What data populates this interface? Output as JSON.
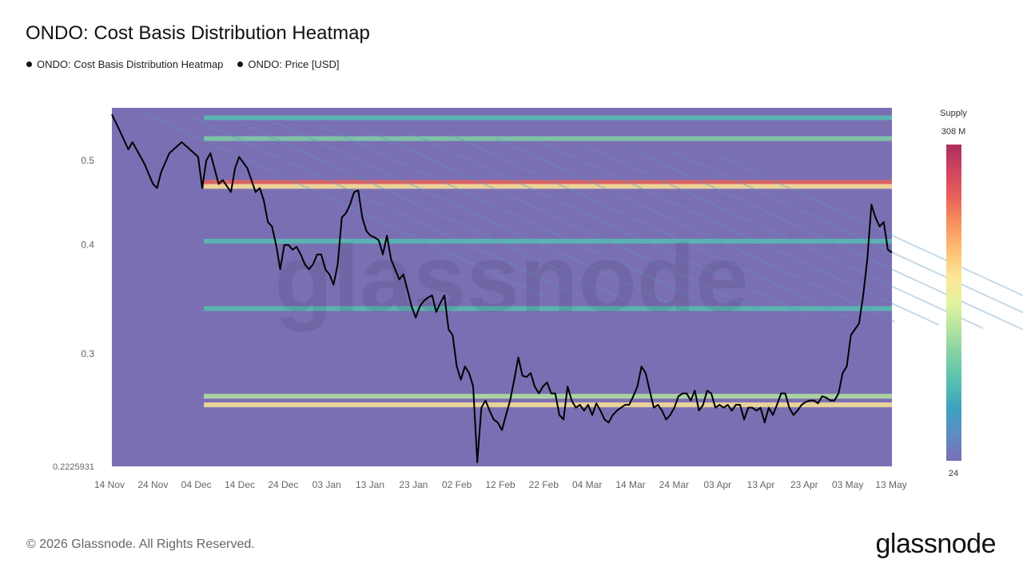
{
  "title": "ONDO: Cost Basis Distribution Heatmap",
  "legend": [
    {
      "label": "ONDO: Cost Basis Distribution Heatmap"
    },
    {
      "label": "ONDO: Price [USD]"
    }
  ],
  "footer": "© 2026 Glassnode. All Rights Reserved.",
  "logo": "glassnode",
  "watermark": "glassnode",
  "colors": {
    "background": "#7b6fb3",
    "price_line": "#000000",
    "colorbar": [
      "#7a6fb4",
      "#5e8cc3",
      "#3fa2c0",
      "#55c0b0",
      "#7fd0a5",
      "#b4e3a0",
      "#e4f39e",
      "#fde595",
      "#fdbf73",
      "#f8925e",
      "#e9615a",
      "#d04560",
      "#b02e5e"
    ]
  },
  "chart_data": {
    "type": "heatmap",
    "title": "",
    "y_axis": {
      "scale": "log",
      "ticks": [
        0.5,
        0.4,
        0.3
      ],
      "min_label": "0.2225931",
      "range": [
        0.2225931,
        0.575
      ]
    },
    "x_axis": {
      "ticks": [
        "14 Nov",
        "24 Nov",
        "04 Dec",
        "14 Dec",
        "24 Dec",
        "03 Jan",
        "13 Jan",
        "23 Jan",
        "02 Feb",
        "12 Feb",
        "22 Feb",
        "04 Mar",
        "14 Mar",
        "24 Mar",
        "03 Apr",
        "13 Apr",
        "23 Apr",
        "03 May",
        "13 May"
      ]
    },
    "colorbar": {
      "label": "Supply",
      "max_label": "308 M",
      "min_label": "24",
      "max": 308000000,
      "min": 24
    },
    "price_series": {
      "name": "ONDO: Price [USD]",
      "points": [
        [
          0,
          0.565
        ],
        [
          2,
          0.54
        ],
        [
          4,
          0.515
        ],
        [
          5,
          0.525
        ],
        [
          7,
          0.505
        ],
        [
          8,
          0.495
        ],
        [
          10,
          0.47
        ],
        [
          11,
          0.465
        ],
        [
          12,
          0.485
        ],
        [
          14,
          0.51
        ],
        [
          16,
          0.52
        ],
        [
          17,
          0.525
        ],
        [
          19,
          0.515
        ],
        [
          21,
          0.505
        ],
        [
          22,
          0.465
        ],
        [
          23,
          0.5
        ],
        [
          24,
          0.51
        ],
        [
          26,
          0.47
        ],
        [
          27,
          0.475
        ],
        [
          29,
          0.46
        ],
        [
          30,
          0.49
        ],
        [
          31,
          0.505
        ],
        [
          33,
          0.49
        ],
        [
          35,
          0.46
        ],
        [
          36,
          0.465
        ],
        [
          37,
          0.45
        ],
        [
          38,
          0.425
        ],
        [
          39,
          0.42
        ],
        [
          40,
          0.4
        ],
        [
          41,
          0.375
        ],
        [
          42,
          0.4
        ],
        [
          43,
          0.4
        ],
        [
          44,
          0.395
        ],
        [
          45,
          0.398
        ],
        [
          46,
          0.39
        ],
        [
          47,
          0.38
        ],
        [
          48,
          0.375
        ],
        [
          49,
          0.38
        ],
        [
          50,
          0.39
        ],
        [
          51,
          0.39
        ],
        [
          52,
          0.375
        ],
        [
          53,
          0.37
        ],
        [
          54,
          0.36
        ],
        [
          55,
          0.38
        ],
        [
          56,
          0.43
        ],
        [
          57,
          0.435
        ],
        [
          58,
          0.445
        ],
        [
          59,
          0.46
        ],
        [
          60,
          0.462
        ],
        [
          61,
          0.43
        ],
        [
          62,
          0.415
        ],
        [
          63,
          0.41
        ],
        [
          64,
          0.408
        ],
        [
          65,
          0.405
        ],
        [
          66,
          0.39
        ],
        [
          67,
          0.41
        ],
        [
          68,
          0.385
        ],
        [
          69,
          0.375
        ],
        [
          70,
          0.365
        ],
        [
          71,
          0.37
        ],
        [
          72,
          0.355
        ],
        [
          73,
          0.34
        ],
        [
          74,
          0.33
        ],
        [
          75,
          0.34
        ],
        [
          76,
          0.345
        ],
        [
          77,
          0.348
        ],
        [
          78,
          0.35
        ],
        [
          79,
          0.335
        ],
        [
          80,
          0.343
        ],
        [
          81,
          0.35
        ],
        [
          82,
          0.32
        ],
        [
          83,
          0.315
        ],
        [
          84,
          0.29
        ],
        [
          85,
          0.28
        ],
        [
          86,
          0.29
        ],
        [
          87,
          0.285
        ],
        [
          88,
          0.275
        ],
        [
          89,
          0.225
        ],
        [
          90,
          0.26
        ],
        [
          91,
          0.265
        ],
        [
          92,
          0.258
        ],
        [
          93,
          0.252
        ],
        [
          94,
          0.25
        ],
        [
          95,
          0.245
        ],
        [
          96,
          0.255
        ],
        [
          97,
          0.265
        ],
        [
          98,
          0.28
        ],
        [
          99,
          0.297
        ],
        [
          100,
          0.283
        ],
        [
          101,
          0.282
        ],
        [
          102,
          0.285
        ],
        [
          103,
          0.275
        ],
        [
          104,
          0.27
        ],
        [
          105,
          0.275
        ],
        [
          106,
          0.278
        ],
        [
          107,
          0.27
        ],
        [
          108,
          0.27
        ],
        [
          109,
          0.255
        ],
        [
          110,
          0.252
        ],
        [
          111,
          0.275
        ],
        [
          112,
          0.265
        ],
        [
          113,
          0.26
        ],
        [
          114,
          0.262
        ],
        [
          115,
          0.258
        ],
        [
          116,
          0.262
        ],
        [
          117,
          0.255
        ],
        [
          118,
          0.263
        ],
        [
          119,
          0.258
        ],
        [
          120,
          0.252
        ],
        [
          121,
          0.25
        ],
        [
          122,
          0.255
        ],
        [
          123,
          0.258
        ],
        [
          124,
          0.26
        ],
        [
          125,
          0.262
        ],
        [
          126,
          0.262
        ],
        [
          127,
          0.268
        ],
        [
          128,
          0.275
        ],
        [
          129,
          0.29
        ],
        [
          130,
          0.285
        ],
        [
          131,
          0.272
        ],
        [
          132,
          0.26
        ],
        [
          133,
          0.262
        ],
        [
          134,
          0.258
        ],
        [
          135,
          0.252
        ],
        [
          136,
          0.255
        ],
        [
          137,
          0.26
        ],
        [
          138,
          0.268
        ],
        [
          139,
          0.27
        ],
        [
          140,
          0.27
        ],
        [
          141,
          0.265
        ],
        [
          142,
          0.272
        ],
        [
          143,
          0.258
        ],
        [
          144,
          0.262
        ],
        [
          145,
          0.272
        ],
        [
          146,
          0.27
        ],
        [
          147,
          0.26
        ],
        [
          148,
          0.262
        ],
        [
          149,
          0.26
        ],
        [
          150,
          0.262
        ],
        [
          151,
          0.258
        ],
        [
          152,
          0.262
        ],
        [
          153,
          0.262
        ],
        [
          154,
          0.252
        ],
        [
          155,
          0.26
        ],
        [
          156,
          0.26
        ],
        [
          157,
          0.258
        ],
        [
          158,
          0.26
        ],
        [
          159,
          0.25
        ],
        [
          160,
          0.26
        ],
        [
          161,
          0.255
        ],
        [
          162,
          0.262
        ],
        [
          163,
          0.27
        ],
        [
          164,
          0.27
        ],
        [
          165,
          0.26
        ],
        [
          166,
          0.255
        ],
        [
          167,
          0.258
        ],
        [
          168,
          0.262
        ],
        [
          169,
          0.264
        ],
        [
          170,
          0.265
        ],
        [
          171,
          0.265
        ],
        [
          172,
          0.263
        ],
        [
          173,
          0.268
        ],
        [
          174,
          0.267
        ],
        [
          175,
          0.265
        ],
        [
          176,
          0.265
        ],
        [
          177,
          0.27
        ],
        [
          178,
          0.285
        ],
        [
          179,
          0.29
        ],
        [
          180,
          0.315
        ],
        [
          181,
          0.32
        ],
        [
          182,
          0.325
        ],
        [
          183,
          0.35
        ],
        [
          184,
          0.385
        ],
        [
          185,
          0.445
        ],
        [
          186,
          0.43
        ],
        [
          187,
          0.42
        ],
        [
          188,
          0.425
        ],
        [
          189,
          0.395
        ],
        [
          190,
          0.392
        ]
      ],
      "x_range": [
        0,
        181
      ]
    },
    "supply_bands": [
      {
        "price": 0.472,
        "intensity": 0.85
      },
      {
        "price": 0.467,
        "intensity": 0.55
      },
      {
        "price": 0.53,
        "intensity": 0.35
      },
      {
        "price": 0.268,
        "intensity": 0.45
      },
      {
        "price": 0.262,
        "intensity": 0.6
      },
      {
        "price": 0.404,
        "intensity": 0.25
      },
      {
        "price": 0.338,
        "intensity": 0.25
      },
      {
        "price": 0.56,
        "intensity": 0.25
      }
    ]
  }
}
